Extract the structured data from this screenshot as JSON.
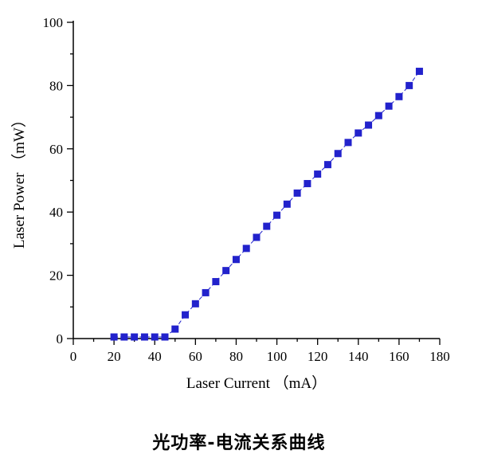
{
  "chart_data": {
    "type": "scatter",
    "title": "光功率-电流关系曲线",
    "xlabel": "Laser Current （mA）",
    "ylabel": "Laser Power （mW）",
    "xlim": [
      0,
      180
    ],
    "ylim": [
      0,
      100
    ],
    "x_major_step": 20,
    "x_minor_step": 10,
    "y_major_step": 20,
    "y_minor_step": 10,
    "x_tick_labels": [
      "0",
      "20",
      "40",
      "60",
      "80",
      "100",
      "120",
      "140",
      "160",
      "180"
    ],
    "y_tick_labels": [
      "0",
      "20",
      "40",
      "60",
      "80",
      "100"
    ],
    "marker": "square",
    "marker_color": "#2222cc",
    "line_color": "#2222cc",
    "line_style": "dashed",
    "axis_color": "#000000",
    "points": [
      [
        20,
        0.5
      ],
      [
        25,
        0.5
      ],
      [
        30,
        0.5
      ],
      [
        35,
        0.5
      ],
      [
        40,
        0.5
      ],
      [
        45,
        0.5
      ],
      [
        50,
        3
      ],
      [
        55,
        7.5
      ],
      [
        60,
        11
      ],
      [
        65,
        14.5
      ],
      [
        70,
        18
      ],
      [
        75,
        21.5
      ],
      [
        80,
        25
      ],
      [
        85,
        28.5
      ],
      [
        90,
        32
      ],
      [
        95,
        35.5
      ],
      [
        100,
        39
      ],
      [
        105,
        42.5
      ],
      [
        110,
        46
      ],
      [
        115,
        49
      ],
      [
        120,
        52
      ],
      [
        125,
        55
      ],
      [
        130,
        58.5
      ],
      [
        135,
        62
      ],
      [
        140,
        65
      ],
      [
        145,
        67.5
      ],
      [
        150,
        70.5
      ],
      [
        155,
        73.5
      ],
      [
        160,
        76.5
      ],
      [
        165,
        80
      ],
      [
        170,
        84.5
      ]
    ]
  }
}
